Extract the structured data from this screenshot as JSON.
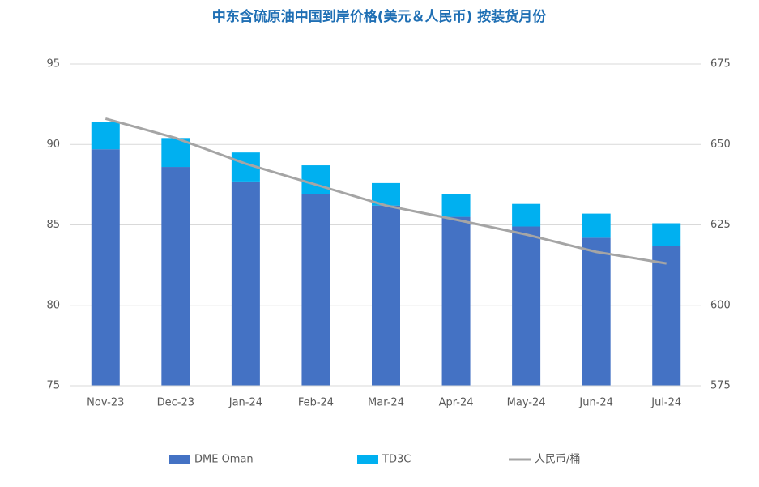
{
  "chart_data": {
    "type": "bar-line",
    "title": "中东含硫原油中国到岸价格(美元＆人民币) 按装货月份",
    "categories": [
      "Nov-23",
      "Dec-23",
      "Jan-24",
      "Feb-24",
      "Mar-24",
      "Apr-24",
      "May-24",
      "Jun-24",
      "Jul-24"
    ],
    "series": [
      {
        "name": "DME Oman",
        "color": "#4472c4",
        "type": "bar",
        "values": [
          89.7,
          88.6,
          87.7,
          86.9,
          86.2,
          85.5,
          84.9,
          84.2,
          83.7
        ]
      },
      {
        "name": "TD3C",
        "color": "#00b0f0",
        "type": "bar",
        "values": [
          1.7,
          1.8,
          1.8,
          1.8,
          1.4,
          1.4,
          1.4,
          1.5,
          1.4
        ]
      },
      {
        "name": "人民币/桶",
        "color": "#a5a5a5",
        "type": "line",
        "axis": "y2",
        "values": [
          658,
          652,
          644,
          637.5,
          631,
          626.6,
          622,
          616.6,
          613
        ]
      }
    ],
    "ylim": [
      75,
      95
    ],
    "yticks": [
      75,
      80,
      85,
      90,
      95
    ],
    "y2lim": [
      575,
      675
    ],
    "y2ticks": [
      575,
      600,
      625,
      650,
      675
    ],
    "grid": true,
    "stacked": true,
    "legend": "bottom"
  }
}
